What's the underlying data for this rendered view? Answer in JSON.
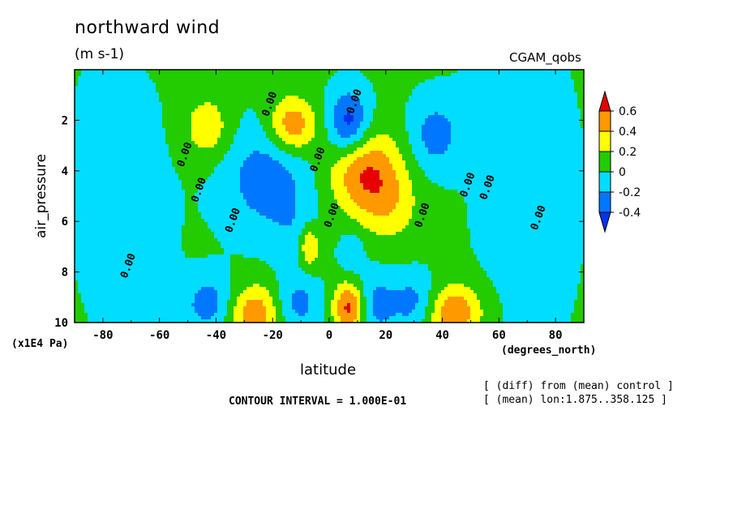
{
  "header": {
    "title": "northward wind",
    "units": "(m s-1)",
    "dataset": "CGAM_qobs"
  },
  "footer": {
    "x_units": "(degrees_north)",
    "y_units": "(x1E4 Pa)",
    "contour_interval": "CONTOUR INTERVAL = 1.000E-01",
    "note_line1": "[ (diff) from (mean) control ]",
    "note_line2": "[ (mean) lon:1.875..358.125 ]"
  },
  "chart_data": {
    "type": "heatmap",
    "subtype": "filled contour",
    "title": "northward wind",
    "units": "(m s-1)",
    "xlabel": "latitude",
    "ylabel": "air_pressure",
    "xlim": [
      -90,
      90
    ],
    "ylim": [
      10,
      0
    ],
    "x_ticks": [
      -80,
      -60,
      -40,
      -20,
      0,
      20,
      40,
      60,
      80
    ],
    "y_ticks": [
      2,
      4,
      6,
      8,
      10
    ],
    "contour_interval": 0.1,
    "colorbar": {
      "labels": [
        "0.6",
        "0.4",
        "0.2",
        "0",
        "-0.2",
        "-0.4"
      ],
      "levels": [
        0.6,
        0.4,
        0.2,
        0,
        -0.2,
        -0.4
      ],
      "colors": [
        "#e60000",
        "#ff9900",
        "#ffff00",
        "#22cc00",
        "#00ddff",
        "#0077ff",
        "#0033ee"
      ]
    },
    "contour_labels": [
      "0.00",
      "0.00",
      "0.00",
      "0.00",
      "0.00",
      "0.00",
      "0.00",
      "0.00",
      "0.00",
      "0.00",
      "0.00",
      "0.00"
    ],
    "legend_position": "right"
  }
}
